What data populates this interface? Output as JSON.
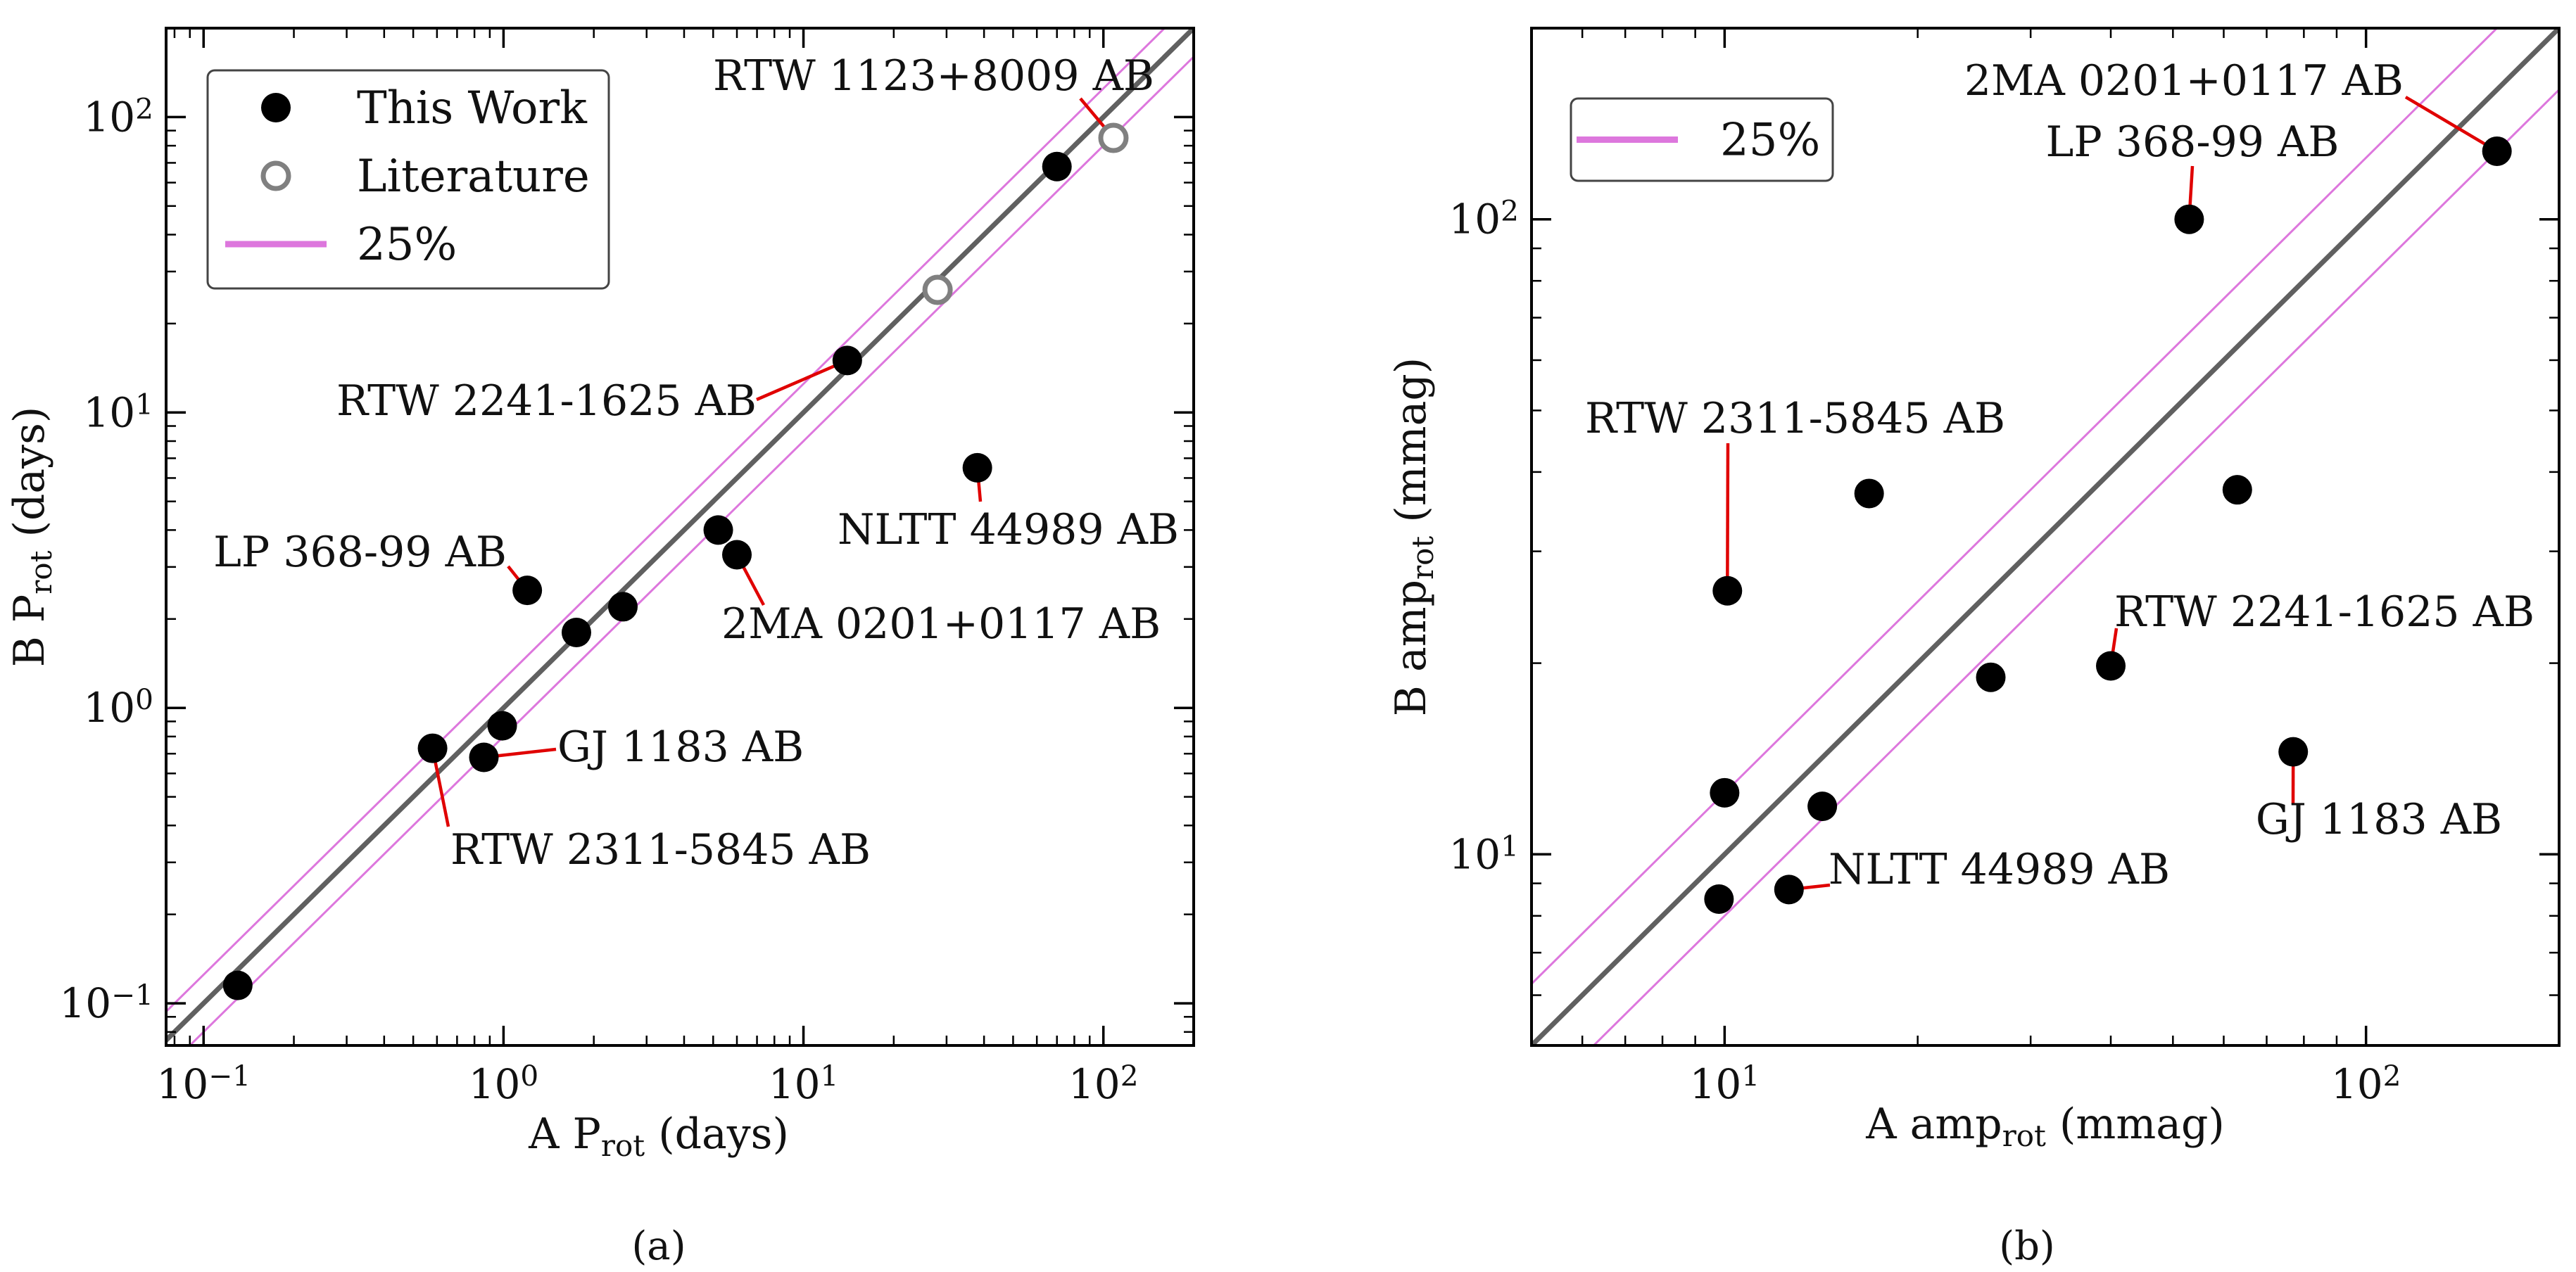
{
  "chart_data": [
    {
      "type": "scatter",
      "panel_caption": "(a)",
      "xlabel": {
        "pre": "A  P",
        "sub": "rot",
        "post": " (days)"
      },
      "ylabel": {
        "pre": "B  P",
        "sub": "rot",
        "post": " (days)"
      },
      "xscale": "log",
      "yscale": "log",
      "xlim": [
        0.075,
        200
      ],
      "ylim": [
        0.072,
        200
      ],
      "xticks": [
        {
          "value": 0.1,
          "base": "10",
          "exp": "−1"
        },
        {
          "value": 1,
          "base": "10",
          "exp": "0"
        },
        {
          "value": 10,
          "base": "10",
          "exp": "1"
        },
        {
          "value": 100,
          "base": "10",
          "exp": "2"
        }
      ],
      "yticks": [
        {
          "value": 0.1,
          "base": "10",
          "exp": "−1"
        },
        {
          "value": 1,
          "base": "10",
          "exp": "0"
        },
        {
          "value": 10,
          "base": "10",
          "exp": "1"
        },
        {
          "value": 100,
          "base": "10",
          "exp": "2"
        }
      ],
      "reference_lines": {
        "one_to_one_color": "#606060",
        "band_color": "#dd77dd",
        "band_fraction": 0.25
      },
      "legend": {
        "position": "upper-left",
        "entries": [
          {
            "label": "This Work",
            "marker": "filled-circle"
          },
          {
            "label": "Literature",
            "marker": "open-circle"
          },
          {
            "label": "25%",
            "marker": "line"
          }
        ]
      },
      "series": [
        {
          "name": "This Work",
          "color": "#000000",
          "points": [
            {
              "x": 0.13,
              "y": 0.115
            },
            {
              "x": 0.58,
              "y": 0.73
            },
            {
              "x": 0.86,
              "y": 0.68
            },
            {
              "x": 0.99,
              "y": 0.87
            },
            {
              "x": 1.2,
              "y": 2.5
            },
            {
              "x": 1.75,
              "y": 1.8
            },
            {
              "x": 2.5,
              "y": 2.2
            },
            {
              "x": 5.2,
              "y": 4.0
            },
            {
              "x": 6.0,
              "y": 3.3
            },
            {
              "x": 14.0,
              "y": 15.0
            },
            {
              "x": 38.0,
              "y": 6.5
            },
            {
              "x": 70.0,
              "y": 68.0
            }
          ]
        },
        {
          "name": "Literature",
          "color": "#808080",
          "points": [
            {
              "x": 28.0,
              "y": 26.0
            },
            {
              "x": 108.0,
              "y": 85.0
            }
          ]
        }
      ],
      "annotations": [
        {
          "text": "RTW 1123+8009 AB",
          "x": 108.0,
          "y": 85.0
        },
        {
          "text": "RTW 2241-1625 AB",
          "x": 14.0,
          "y": 15.0
        },
        {
          "text": "NLTT 44989 AB",
          "x": 38.0,
          "y": 6.5
        },
        {
          "text": "LP 368-99 AB",
          "x": 1.2,
          "y": 2.5
        },
        {
          "text": "2MA 0201+0117 AB",
          "x": 6.0,
          "y": 3.3
        },
        {
          "text": "GJ 1183 AB",
          "x": 0.86,
          "y": 0.68
        },
        {
          "text": "RTW 2311-5845 AB",
          "x": 0.58,
          "y": 0.73
        }
      ]
    },
    {
      "type": "scatter",
      "panel_caption": "(b)",
      "xlabel": {
        "pre": "A  amp",
        "sub": "rot",
        "post": " (mmag)"
      },
      "ylabel": {
        "pre": "B  amp",
        "sub": "rot",
        "post": " (mmag)"
      },
      "xscale": "log",
      "yscale": "log",
      "xlim": [
        5.0,
        200
      ],
      "ylim": [
        5.0,
        200
      ],
      "xticks": [
        {
          "value": 10,
          "base": "10",
          "exp": "1"
        },
        {
          "value": 100,
          "base": "10",
          "exp": "2"
        }
      ],
      "yticks": [
        {
          "value": 10,
          "base": "10",
          "exp": "1"
        },
        {
          "value": 100,
          "base": "10",
          "exp": "2"
        }
      ],
      "reference_lines": {
        "one_to_one_color": "#606060",
        "band_color": "#dd77dd",
        "band_fraction": 0.25
      },
      "legend": {
        "position": "upper-left",
        "entries": [
          {
            "label": "25%",
            "marker": "line"
          }
        ]
      },
      "series": [
        {
          "name": "This Work",
          "color": "#000000",
          "points": [
            {
              "x": 9.8,
              "y": 8.5
            },
            {
              "x": 10.0,
              "y": 12.5
            },
            {
              "x": 10.1,
              "y": 26.0
            },
            {
              "x": 12.6,
              "y": 8.8
            },
            {
              "x": 14.2,
              "y": 11.9
            },
            {
              "x": 16.8,
              "y": 37.0
            },
            {
              "x": 26.0,
              "y": 19.0
            },
            {
              "x": 40.0,
              "y": 19.8
            },
            {
              "x": 53.0,
              "y": 100.0
            },
            {
              "x": 63.0,
              "y": 37.5
            },
            {
              "x": 77.0,
              "y": 14.5
            },
            {
              "x": 160.0,
              "y": 128.0
            }
          ]
        }
      ],
      "annotations": [
        {
          "text": "2MA 0201+0117 AB",
          "x": 160.0,
          "y": 128.0
        },
        {
          "text": "LP 368-99 AB",
          "x": 53.0,
          "y": 100.0
        },
        {
          "text": "RTW 2311-5845 AB",
          "x": 10.1,
          "y": 26.0
        },
        {
          "text": "RTW 2241-1625 AB",
          "x": 40.0,
          "y": 19.8
        },
        {
          "text": "GJ 1183 AB",
          "x": 77.0,
          "y": 14.5
        },
        {
          "text": "NLTT 44989 AB",
          "x": 12.6,
          "y": 8.8
        }
      ]
    }
  ]
}
